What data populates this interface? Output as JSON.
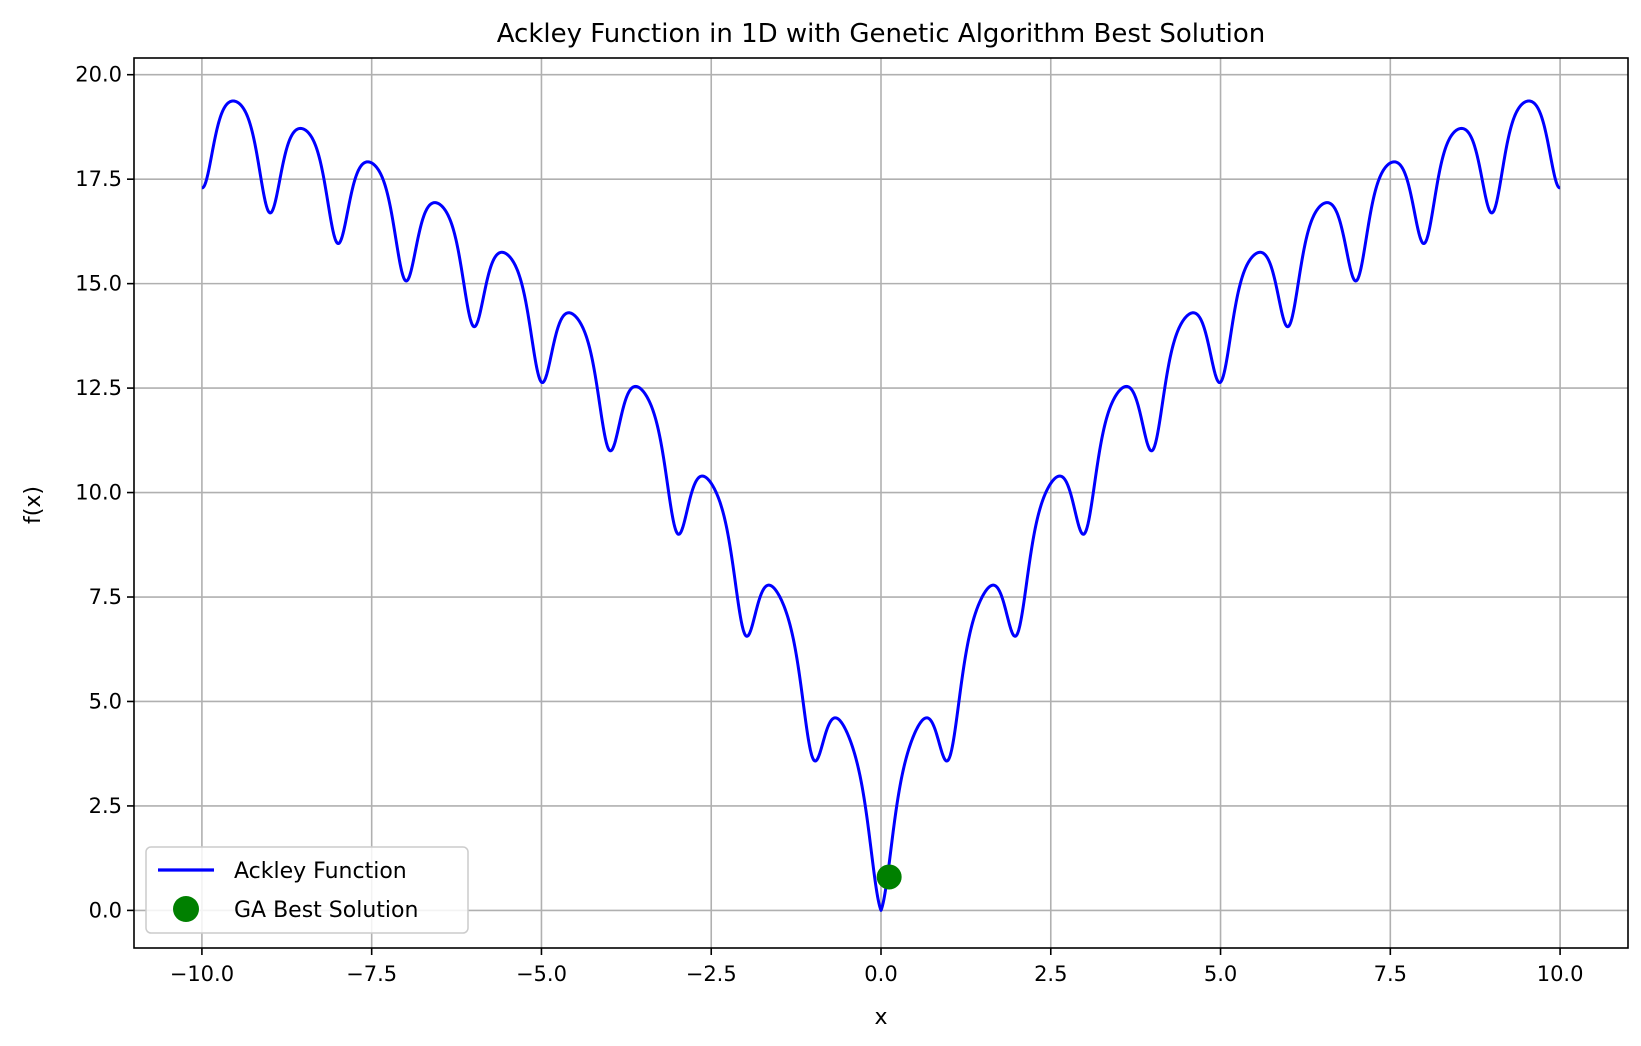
{
  "chart_data": {
    "type": "line",
    "title": "Ackley Function in 1D with Genetic Algorithm Best Solution",
    "xlabel": "x",
    "ylabel": "f(x)",
    "xlim": [
      -11.0,
      11.0
    ],
    "ylim": [
      -0.9,
      20.4
    ],
    "grid": true,
    "legend_position": "lower-left",
    "x_ticks": [
      -10.0,
      -7.5,
      -5.0,
      -2.5,
      0.0,
      2.5,
      5.0,
      7.5,
      10.0
    ],
    "x_tick_labels": [
      "−10.0",
      "−7.5",
      "−5.0",
      "−2.5",
      "0.0",
      "2.5",
      "5.0",
      "7.5",
      "10.0"
    ],
    "y_ticks": [
      0.0,
      2.5,
      5.0,
      7.5,
      10.0,
      12.5,
      15.0,
      17.5,
      20.0
    ],
    "y_tick_labels": [
      "0.0",
      "2.5",
      "5.0",
      "7.5",
      "10.0",
      "12.5",
      "15.0",
      "17.5",
      "20.0"
    ],
    "series": [
      {
        "name": "Ackley Function",
        "kind": "line",
        "color": "#0000ff",
        "function": "ackley_1d",
        "x_range": [
          -10.0,
          10.0
        ],
        "sample_points": [
          [
            -10.0,
            17.29
          ],
          [
            -9.5,
            19.38
          ],
          [
            -9.0,
            16.71
          ],
          [
            -8.5,
            18.7
          ],
          [
            -8.0,
            15.97
          ],
          [
            -7.5,
            17.9
          ],
          [
            -7.0,
            15.11
          ],
          [
            -6.5,
            16.94
          ],
          [
            -6.0,
            14.02
          ],
          [
            -5.5,
            15.72
          ],
          [
            -5.0,
            12.63
          ],
          [
            -4.5,
            14.27
          ],
          [
            -4.0,
            10.99
          ],
          [
            -3.5,
            12.53
          ],
          [
            -3.0,
            8.98
          ],
          [
            -2.5,
            10.34
          ],
          [
            -2.0,
            6.59
          ],
          [
            -1.5,
            7.77
          ],
          [
            -1.0,
            3.57
          ],
          [
            -0.5,
            4.57
          ],
          [
            0.0,
            0.0
          ],
          [
            0.5,
            4.57
          ],
          [
            1.0,
            3.57
          ],
          [
            1.5,
            7.77
          ],
          [
            2.0,
            6.59
          ],
          [
            2.5,
            10.34
          ],
          [
            3.0,
            8.98
          ],
          [
            3.5,
            12.53
          ],
          [
            4.0,
            10.99
          ],
          [
            4.5,
            14.27
          ],
          [
            5.0,
            12.63
          ],
          [
            5.5,
            15.72
          ],
          [
            6.0,
            14.02
          ],
          [
            6.5,
            16.94
          ],
          [
            7.0,
            15.11
          ],
          [
            7.5,
            17.9
          ],
          [
            8.0,
            15.97
          ],
          [
            8.5,
            18.7
          ],
          [
            9.0,
            16.71
          ],
          [
            9.5,
            19.38
          ],
          [
            10.0,
            17.29
          ]
        ]
      },
      {
        "name": "GA Best Solution",
        "kind": "scatter",
        "color": "#008000",
        "points": [
          [
            0.12,
            0.8
          ]
        ]
      }
    ]
  }
}
